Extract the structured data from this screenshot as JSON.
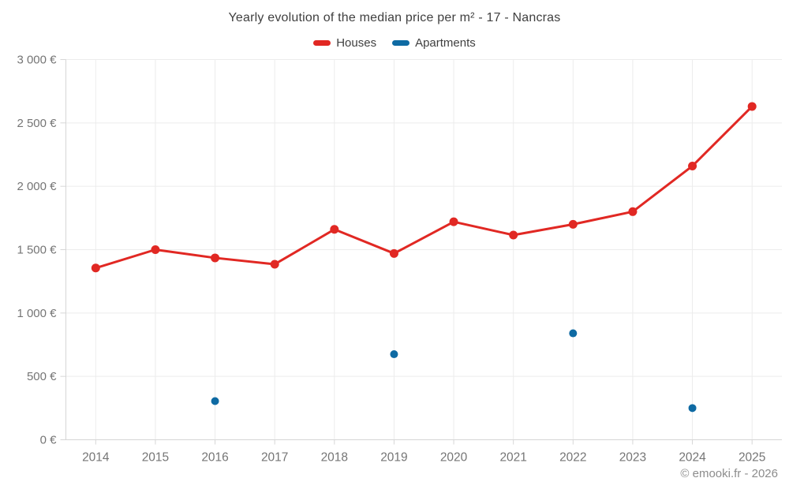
{
  "chart_data": {
    "type": "line",
    "title": "Yearly evolution of the median price per m² - 17 - Nancras",
    "categories": [
      "2014",
      "2015",
      "2016",
      "2017",
      "2018",
      "2019",
      "2020",
      "2021",
      "2022",
      "2023",
      "2024",
      "2025"
    ],
    "series": [
      {
        "name": "Houses",
        "type": "line",
        "color": "#e12823",
        "values": [
          1355,
          1500,
          1435,
          1385,
          1660,
          1470,
          1720,
          1615,
          1700,
          1800,
          2160,
          2630
        ]
      },
      {
        "name": "Apartments",
        "type": "scatter",
        "color": "#0e6aa3",
        "values": [
          null,
          null,
          305,
          null,
          null,
          675,
          null,
          null,
          840,
          null,
          250,
          null
        ]
      }
    ],
    "xlabel": "",
    "ylabel": "",
    "ylim": [
      0,
      3000
    ],
    "y_ticks": [
      0,
      500,
      1000,
      1500,
      2000,
      2500,
      3000
    ],
    "y_tick_labels": [
      "0 €",
      "500 €",
      "1 000 €",
      "1 500 €",
      "2 000 €",
      "2 500 €",
      "3 000 €"
    ],
    "grid": true,
    "legend_position": "top",
    "grid_color": "#ececec",
    "axis_color": "#d6d6d6",
    "tick_label_color": "#757575"
  },
  "footer": {
    "credit": "© emooki.fr - 2026"
  }
}
